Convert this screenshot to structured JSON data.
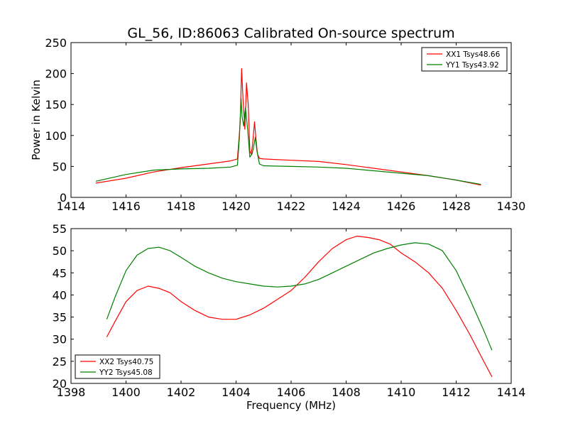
{
  "chart_data": [
    {
      "type": "line",
      "title": "GL_56, ID:86063 Calibrated On-source spectrum",
      "xlabel": "",
      "ylabel": "Power in Kelvin",
      "xlim": [
        1414,
        1430
      ],
      "ylim": [
        0,
        250
      ],
      "xticks": [
        "1414",
        "1416",
        "1418",
        "1420",
        "1422",
        "1424",
        "1426",
        "1428",
        "1430"
      ],
      "yticks": [
        "0",
        "50",
        "100",
        "150",
        "200",
        "250"
      ],
      "legend": "top-right",
      "grid": false,
      "series": [
        {
          "name": "XX1 Tsys48.66",
          "color": "#ff0000",
          "x": [
            1414.9,
            1416,
            1417,
            1418,
            1419,
            1419.8,
            1420.05,
            1420.15,
            1420.2,
            1420.25,
            1420.32,
            1420.38,
            1420.44,
            1420.5,
            1420.55,
            1420.6,
            1420.67,
            1420.72,
            1420.78,
            1420.85,
            1421,
            1422,
            1423,
            1424,
            1425,
            1426,
            1427,
            1428,
            1428.9
          ],
          "y": [
            23,
            31,
            41,
            48,
            54,
            59,
            62,
            120,
            208,
            160,
            110,
            185,
            150,
            75,
            70,
            85,
            122,
            95,
            70,
            63,
            62,
            60,
            58,
            53,
            47,
            41,
            35,
            28,
            20
          ]
        },
        {
          "name": "YY1 Tsys43.92",
          "color": "#008000",
          "x": [
            1414.9,
            1416,
            1417,
            1418,
            1419,
            1419.8,
            1420.05,
            1420.12,
            1420.18,
            1420.22,
            1420.28,
            1420.34,
            1420.42,
            1420.5,
            1420.58,
            1420.64,
            1420.7,
            1420.76,
            1420.85,
            1421,
            1422,
            1423,
            1424,
            1425,
            1426,
            1427,
            1428,
            1428.9
          ],
          "y": [
            26,
            37,
            44,
            46,
            47,
            49,
            52,
            95,
            160,
            130,
            115,
            145,
            110,
            65,
            70,
            82,
            97,
            75,
            54,
            51,
            50,
            49,
            47,
            43,
            39,
            35,
            28,
            21
          ]
        }
      ]
    },
    {
      "type": "line",
      "title": "",
      "xlabel": "Frequency (MHz)",
      "ylabel": "",
      "xlim": [
        1398,
        1414
      ],
      "ylim": [
        20,
        55
      ],
      "xticks": [
        "1398",
        "1400",
        "1402",
        "1404",
        "1406",
        "1408",
        "1410",
        "1412",
        "1414"
      ],
      "yticks": [
        "20",
        "25",
        "30",
        "35",
        "40",
        "45",
        "50",
        "55"
      ],
      "legend": "lower-left",
      "grid": false,
      "series": [
        {
          "name": "XX2 Tsys40.75",
          "color": "#ff0000",
          "x": [
            1399.3,
            1399.6,
            1400.0,
            1400.4,
            1400.8,
            1401.2,
            1401.6,
            1402.0,
            1402.5,
            1403.0,
            1403.5,
            1404.0,
            1404.5,
            1405.0,
            1405.5,
            1406.0,
            1406.5,
            1407.0,
            1407.5,
            1408.0,
            1408.4,
            1408.8,
            1409.2,
            1409.6,
            1410.0,
            1410.5,
            1411.0,
            1411.5,
            1412.0,
            1412.5,
            1413.0,
            1413.3
          ],
          "y": [
            30.5,
            34.0,
            38.5,
            41.0,
            42.0,
            41.5,
            40.5,
            38.5,
            36.5,
            35.0,
            34.5,
            34.5,
            35.5,
            37.0,
            39.0,
            41.0,
            44.0,
            47.5,
            50.5,
            52.5,
            53.3,
            53.0,
            52.5,
            51.5,
            49.5,
            47.5,
            45.0,
            41.5,
            36.5,
            31.0,
            25.0,
            21.5
          ]
        },
        {
          "name": "YY2 Tsys45.08",
          "color": "#008000",
          "x": [
            1399.3,
            1399.6,
            1400.0,
            1400.4,
            1400.8,
            1401.2,
            1401.6,
            1402.0,
            1402.5,
            1403.0,
            1403.5,
            1404.0,
            1404.5,
            1405.0,
            1405.5,
            1406.0,
            1406.5,
            1407.0,
            1407.5,
            1408.0,
            1408.5,
            1409.0,
            1409.5,
            1410.0,
            1410.5,
            1411.0,
            1411.5,
            1412.0,
            1412.5,
            1413.0,
            1413.3
          ],
          "y": [
            34.5,
            39.5,
            45.5,
            49.0,
            50.5,
            50.8,
            50.0,
            48.5,
            46.5,
            45.0,
            43.8,
            43.0,
            42.5,
            42.0,
            41.8,
            42.0,
            42.5,
            43.5,
            45.0,
            46.5,
            48.0,
            49.5,
            50.5,
            51.3,
            51.8,
            51.5,
            50.0,
            45.5,
            39.0,
            32.0,
            27.5
          ]
        }
      ]
    }
  ]
}
